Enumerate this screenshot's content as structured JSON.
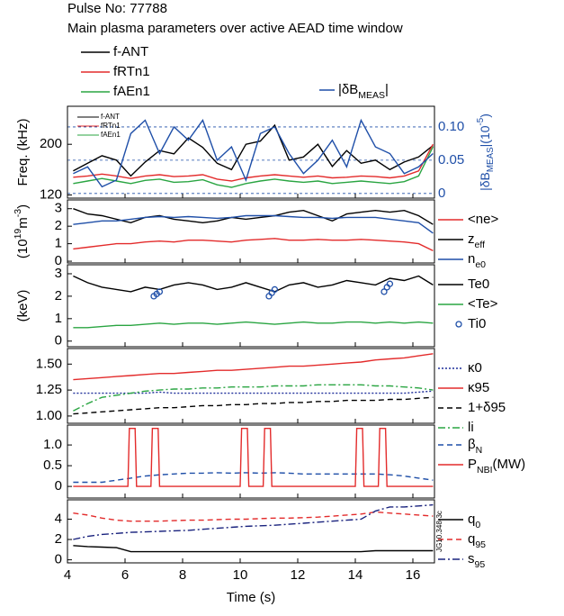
{
  "chart_data": [
    {
      "type": "line",
      "title": "Pulse No: 77788",
      "subtitle": "Main plasma parameters over active AEAD time window",
      "ylabel": [
        {
          "text": "Freq. (kHz)"
        }
      ],
      "y2label": [
        {
          "text": "|δB"
        },
        {
          "text": "MEAS",
          "sub": true
        },
        {
          "text": "|(10"
        },
        {
          "text": "-5",
          "sup": true
        },
        {
          "text": ")"
        }
      ],
      "xlim": [
        4,
        16.75
      ],
      "ylim": [
        115,
        260
      ],
      "yticks": [
        120,
        200
      ],
      "y2lim": [
        -0.007,
        0.131
      ],
      "y2ticks": [
        0,
        0.05,
        {
          "value": 0.1,
          "label": "0.10"
        }
      ],
      "y2grid": true,
      "legend": "top",
      "inner_legend": true,
      "x": [
        4.2,
        4.7,
        5.2,
        5.7,
        6.2,
        6.7,
        7.2,
        7.7,
        8.2,
        8.7,
        9.2,
        9.7,
        10.2,
        10.7,
        11.2,
        11.7,
        12.2,
        12.7,
        13.2,
        13.7,
        14.2,
        14.7,
        15.2,
        15.7,
        16.2,
        16.7
      ],
      "series": [
        {
          "name": [
            {
              "text": "f-ANT"
            }
          ],
          "color": "#000000",
          "values": [
            158,
            170,
            182,
            175,
            150,
            172,
            190,
            185,
            210,
            195,
            170,
            160,
            200,
            205,
            230,
            175,
            180,
            200,
            165,
            190,
            170,
            175,
            160,
            172,
            180,
            198
          ]
        },
        {
          "name": [
            {
              "text": "fRTn1"
            }
          ],
          "color": "#e32b2b",
          "values": [
            148,
            150,
            153,
            150,
            146,
            150,
            152,
            149,
            150,
            152,
            145,
            142,
            147,
            150,
            152,
            150,
            148,
            150,
            147,
            148,
            150,
            149,
            147,
            150,
            158,
            200
          ]
        },
        {
          "name": [
            {
              "text": "fAEn1"
            }
          ],
          "color": "#2aa542",
          "values": [
            138,
            142,
            146,
            142,
            138,
            143,
            145,
            140,
            141,
            144,
            136,
            132,
            138,
            142,
            145,
            142,
            140,
            142,
            138,
            140,
            142,
            140,
            138,
            141,
            150,
            196
          ]
        },
        {
          "name": [
            {
              "text": "|δB"
            },
            {
              "text": "MEAS",
              "sub": true
            },
            {
              "text": "|"
            }
          ],
          "color": "#1f4fa8",
          "axis": "y2",
          "values": [
            0.03,
            0.04,
            0.01,
            0.02,
            0.09,
            0.11,
            0.06,
            0.1,
            0.08,
            0.11,
            0.05,
            0.07,
            0.02,
            0.09,
            0.1,
            0.06,
            0.03,
            0.05,
            0.08,
            0.04,
            0.11,
            0.07,
            0.06,
            0.03,
            0.04,
            0.06
          ]
        }
      ]
    },
    {
      "type": "line",
      "ylabel": [
        {
          "text": "(10"
        },
        {
          "text": "19",
          "sup": true
        },
        {
          "text": "m"
        },
        {
          "text": "-3",
          "sup": true
        },
        {
          "text": ")"
        }
      ],
      "xlim": [
        4,
        16.75
      ],
      "ylim": [
        -0.1,
        3.5
      ],
      "yticks": [
        0,
        1,
        2,
        3
      ],
      "legend": "right",
      "x": [
        4.2,
        4.7,
        5.2,
        5.7,
        6.2,
        6.7,
        7.2,
        7.7,
        8.2,
        8.7,
        9.2,
        9.7,
        10.2,
        10.7,
        11.2,
        11.7,
        12.2,
        12.7,
        13.2,
        13.7,
        14.2,
        14.7,
        15.2,
        15.7,
        16.2,
        16.7
      ],
      "series": [
        {
          "name": [
            {
              "text": "<ne>"
            }
          ],
          "color": "#e32b2b",
          "values": [
            0.7,
            0.8,
            0.9,
            1.0,
            1.0,
            1.1,
            1.15,
            1.1,
            1.2,
            1.2,
            1.15,
            1.1,
            1.2,
            1.25,
            1.3,
            1.2,
            1.2,
            1.25,
            1.2,
            1.2,
            1.25,
            1.2,
            1.15,
            1.1,
            1.0,
            0.6
          ]
        },
        {
          "name": [
            {
              "text": "z"
            },
            {
              "text": "eff",
              "sub": true
            }
          ],
          "color": "#000000",
          "values": [
            3.0,
            2.7,
            2.6,
            2.4,
            2.2,
            2.5,
            2.6,
            2.4,
            2.3,
            2.2,
            2.3,
            2.5,
            2.4,
            2.5,
            2.6,
            2.8,
            2.9,
            2.6,
            2.3,
            2.7,
            2.8,
            2.9,
            2.8,
            2.9,
            2.6,
            2.1
          ]
        },
        {
          "name": [
            {
              "text": "n"
            },
            {
              "text": "e0",
              "sub": true
            }
          ],
          "color": "#1f4fa8",
          "values": [
            2.1,
            2.2,
            2.3,
            2.3,
            2.4,
            2.5,
            2.55,
            2.5,
            2.55,
            2.5,
            2.45,
            2.5,
            2.6,
            2.6,
            2.6,
            2.55,
            2.5,
            2.5,
            2.45,
            2.5,
            2.5,
            2.5,
            2.4,
            2.3,
            2.2,
            1.6
          ]
        }
      ]
    },
    {
      "type": "line",
      "ylabel": [
        {
          "text": "(keV)"
        }
      ],
      "xlim": [
        4,
        16.75
      ],
      "ylim": [
        -0.25,
        3.4
      ],
      "yticks": [
        0,
        1,
        2,
        3
      ],
      "legend": "right",
      "x": [
        4.2,
        4.7,
        5.2,
        5.7,
        6.2,
        6.7,
        7.2,
        7.7,
        8.2,
        8.7,
        9.2,
        9.7,
        10.2,
        10.7,
        11.2,
        11.7,
        12.2,
        12.7,
        13.2,
        13.7,
        14.2,
        14.7,
        15.2,
        15.7,
        16.2,
        16.7
      ],
      "series": [
        {
          "name": [
            {
              "text": "Te0"
            }
          ],
          "color": "#000000",
          "values": [
            2.9,
            2.6,
            2.4,
            2.3,
            2.2,
            2.4,
            2.3,
            2.5,
            2.6,
            2.5,
            2.3,
            2.4,
            2.6,
            2.4,
            2.2,
            2.5,
            2.6,
            2.4,
            2.5,
            2.7,
            2.6,
            2.5,
            2.8,
            2.7,
            2.9,
            2.5
          ]
        },
        {
          "name": [
            {
              "text": "<Te>"
            }
          ],
          "color": "#2aa542",
          "values": [
            0.6,
            0.6,
            0.65,
            0.7,
            0.7,
            0.75,
            0.8,
            0.75,
            0.8,
            0.8,
            0.75,
            0.8,
            0.85,
            0.8,
            0.75,
            0.8,
            0.85,
            0.8,
            0.8,
            0.85,
            0.85,
            0.8,
            0.85,
            0.8,
            0.85,
            0.8
          ]
        },
        {
          "name": [
            {
              "text": "Ti0"
            }
          ],
          "color": "#1f4fa8",
          "kind": "scatter",
          "x": [
            7.0,
            7.1,
            7.2,
            11.0,
            11.1,
            11.2,
            15.0,
            15.1,
            15.2
          ],
          "values": [
            2.0,
            2.1,
            2.2,
            2.0,
            2.15,
            2.3,
            2.2,
            2.4,
            2.55
          ]
        }
      ]
    },
    {
      "type": "line",
      "xlim": [
        4,
        16.75
      ],
      "ylim": [
        0.93,
        1.65
      ],
      "yticks": [
        {
          "value": 1,
          "label": "1.00"
        },
        1.25,
        {
          "value": 1.5,
          "label": "1.50"
        }
      ],
      "legend": "right",
      "x": [
        4.2,
        4.7,
        5.2,
        5.7,
        6.2,
        6.7,
        7.2,
        7.7,
        8.2,
        8.7,
        9.2,
        9.7,
        10.2,
        10.7,
        11.2,
        11.7,
        12.2,
        12.7,
        13.2,
        13.7,
        14.2,
        14.7,
        15.2,
        15.7,
        16.2,
        16.7
      ],
      "series": [
        {
          "name": [
            {
              "text": "κ0"
            }
          ],
          "color": "#1f2f9a",
          "dash": "dotted",
          "values": [
            1.22,
            1.22,
            1.22,
            1.22,
            1.22,
            1.22,
            1.23,
            1.22,
            1.22,
            1.22,
            1.22,
            1.22,
            1.22,
            1.22,
            1.22,
            1.22,
            1.22,
            1.22,
            1.22,
            1.22,
            1.22,
            1.22,
            1.22,
            1.22,
            1.23,
            1.24
          ]
        },
        {
          "name": [
            {
              "text": "κ95"
            }
          ],
          "color": "#e32b2b",
          "values": [
            1.35,
            1.36,
            1.37,
            1.38,
            1.39,
            1.4,
            1.41,
            1.41,
            1.42,
            1.43,
            1.44,
            1.44,
            1.45,
            1.46,
            1.47,
            1.48,
            1.48,
            1.49,
            1.5,
            1.51,
            1.52,
            1.54,
            1.55,
            1.56,
            1.58,
            1.6
          ]
        },
        {
          "name": [
            {
              "text": "1+δ95"
            }
          ],
          "color": "#000000",
          "dash": "dashed",
          "values": [
            1.02,
            1.03,
            1.04,
            1.05,
            1.06,
            1.07,
            1.08,
            1.08,
            1.09,
            1.1,
            1.1,
            1.11,
            1.11,
            1.12,
            1.12,
            1.13,
            1.13,
            1.14,
            1.14,
            1.15,
            1.15,
            1.15,
            1.16,
            1.16,
            1.17,
            1.18
          ]
        },
        {
          "name": [
            {
              "text": "li"
            }
          ],
          "color": "#2aa542",
          "dash": "dashdot",
          "values": [
            1.05,
            1.12,
            1.18,
            1.2,
            1.22,
            1.24,
            1.25,
            1.26,
            1.26,
            1.27,
            1.27,
            1.28,
            1.28,
            1.28,
            1.29,
            1.29,
            1.29,
            1.3,
            1.3,
            1.3,
            1.3,
            1.29,
            1.29,
            1.28,
            1.27,
            1.25
          ]
        }
      ]
    },
    {
      "type": "line",
      "xlim": [
        4,
        16.75
      ],
      "ylim": [
        -0.28,
        1.48
      ],
      "yticks": [
        0,
        0.5,
        {
          "value": 1,
          "label": "1.0"
        }
      ],
      "legend": "right",
      "x": [
        4.2,
        4.7,
        5.2,
        5.7,
        6.2,
        6.7,
        7.2,
        7.7,
        8.2,
        8.7,
        9.2,
        9.7,
        10.2,
        10.7,
        11.2,
        11.7,
        12.2,
        12.7,
        13.2,
        13.7,
        14.2,
        14.7,
        15.2,
        15.7,
        16.2,
        16.7
      ],
      "series": [
        {
          "name": [
            {
              "text": "β"
            },
            {
              "text": "N",
              "sub": true
            }
          ],
          "color": "#1f4fa8",
          "dash": "dashed",
          "values": [
            0.1,
            0.1,
            0.1,
            0.15,
            0.2,
            0.25,
            0.28,
            0.3,
            0.32,
            0.32,
            0.33,
            0.32,
            0.33,
            0.32,
            0.33,
            0.32,
            0.3,
            0.3,
            0.3,
            0.3,
            0.3,
            0.3,
            0.28,
            0.25,
            0.2,
            0.15
          ]
        },
        {
          "name": [
            {
              "text": "P"
            },
            {
              "text": "NBI",
              "sub": true
            },
            {
              "text": "(MW)"
            }
          ],
          "color": "#e32b2b",
          "x": [
            4.2,
            6.1,
            6.15,
            6.35,
            6.4,
            6.9,
            6.95,
            7.15,
            7.2,
            10.0,
            10.05,
            10.25,
            10.3,
            10.8,
            10.85,
            11.05,
            11.1,
            14.0,
            14.05,
            14.25,
            14.3,
            14.8,
            14.85,
            15.05,
            15.1,
            16.7
          ],
          "values": [
            0,
            0,
            1.4,
            1.4,
            0,
            0,
            1.4,
            1.4,
            0,
            0,
            1.4,
            1.4,
            0,
            0,
            1.4,
            1.4,
            0,
            0,
            1.4,
            1.4,
            0,
            0,
            1.4,
            1.4,
            0,
            0
          ]
        }
      ]
    },
    {
      "type": "line",
      "xlim": [
        4,
        16.75
      ],
      "ylim": [
        -0.3,
        5.9
      ],
      "yticks": [
        0,
        2,
        4
      ],
      "legend": "right",
      "xticks": [
        4,
        6,
        8,
        10,
        12,
        14,
        16
      ],
      "xlabel": "Time (s)",
      "annotation": "JG10.348-3c",
      "x": [
        4.2,
        4.7,
        5.2,
        5.7,
        6.2,
        6.7,
        7.2,
        7.7,
        8.2,
        8.7,
        9.2,
        9.7,
        10.2,
        10.7,
        11.2,
        11.7,
        12.2,
        12.7,
        13.2,
        13.7,
        14.2,
        14.7,
        15.2,
        15.7,
        16.2,
        16.7
      ],
      "series": [
        {
          "name": [
            {
              "text": "q"
            },
            {
              "text": "0",
              "sub": true
            }
          ],
          "color": "#000000",
          "values": [
            1.4,
            1.3,
            1.25,
            1.2,
            0.8,
            0.8,
            0.8,
            0.8,
            0.8,
            0.8,
            0.8,
            0.8,
            0.8,
            0.8,
            0.8,
            0.8,
            0.8,
            0.8,
            0.8,
            0.8,
            0.8,
            0.9,
            0.9,
            0.9,
            0.9,
            0.9
          ]
        },
        {
          "name": [
            {
              "text": "q"
            },
            {
              "text": "95",
              "sub": true
            }
          ],
          "color": "#e32b2b",
          "dash": "dashed",
          "values": [
            4.6,
            4.4,
            4.1,
            3.9,
            3.8,
            3.8,
            3.8,
            3.85,
            3.9,
            3.9,
            3.95,
            4.0,
            4.0,
            4.05,
            4.1,
            4.1,
            4.15,
            4.2,
            4.3,
            4.4,
            4.5,
            4.7,
            4.6,
            4.5,
            4.4,
            4.3
          ]
        },
        {
          "name": [
            {
              "text": "s"
            },
            {
              "text": "95",
              "sub": true
            }
          ],
          "color": "#1a237e",
          "dash": "dashdot",
          "values": [
            2.0,
            2.3,
            2.5,
            2.6,
            2.7,
            2.75,
            2.8,
            2.85,
            2.9,
            3.0,
            3.1,
            3.2,
            3.3,
            3.35,
            3.4,
            3.5,
            3.6,
            3.7,
            3.8,
            3.9,
            4.0,
            4.8,
            5.2,
            5.2,
            5.3,
            5.4
          ]
        }
      ]
    }
  ]
}
